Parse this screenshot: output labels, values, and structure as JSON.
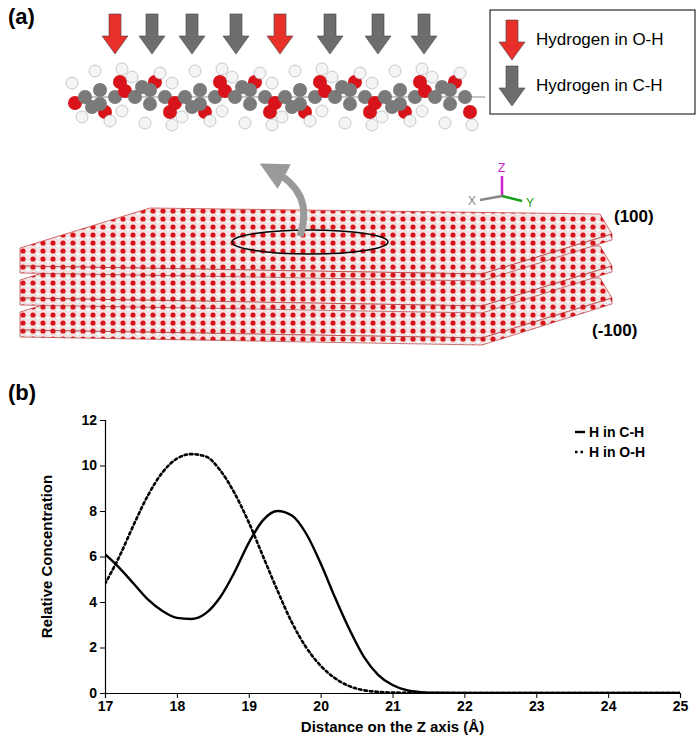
{
  "figure_a": {
    "panel_label": "(a)",
    "legend": [
      {
        "name": "Hydrogen in O-H",
        "color": "#e8302a"
      },
      {
        "name": "Hydrogen in C-H",
        "color": "#6d6d6d"
      }
    ],
    "arrows": [
      "Hydrogen in O-H",
      "Hydrogen in C-H",
      "Hydrogen in C-H",
      "Hydrogen in C-H",
      "Hydrogen in O-H",
      "Hydrogen in C-H",
      "Hydrogen in C-H",
      "Hydrogen in C-H"
    ],
    "surface_labels": [
      "(100)",
      "(-100)"
    ],
    "axis_labels": [
      "Z",
      "X",
      "Y"
    ]
  },
  "chart_data": {
    "type": "line",
    "panel_label": "(b)",
    "x_label": "Distance on the Z axis (Å)",
    "y_label": "Relative Concentration",
    "x": [
      17,
      17.2,
      17.4,
      17.6,
      17.8,
      18,
      18.2,
      18.4,
      18.6,
      18.8,
      19,
      19.2,
      19.4,
      19.6,
      19.8,
      20,
      20.2,
      20.4,
      20.6,
      20.8,
      21,
      21.2,
      21.4,
      21.6,
      22,
      23,
      24,
      25
    ],
    "series": [
      {
        "name": "H in C-H",
        "color": "#000000",
        "line_style": "solid",
        "values": [
          6.1,
          5.5,
          4.8,
          4.1,
          3.6,
          3.3,
          3.25,
          3.5,
          4.2,
          5.3,
          6.6,
          7.6,
          8.0,
          7.8,
          7.0,
          5.7,
          4.2,
          2.8,
          1.6,
          0.8,
          0.35,
          0.12,
          0.04,
          0.01,
          0,
          0,
          0,
          0
        ]
      },
      {
        "name": "H in O-H",
        "color": "#000000",
        "line_style": "dotted",
        "values": [
          4.8,
          6.0,
          7.4,
          8.7,
          9.7,
          10.3,
          10.5,
          10.4,
          9.8,
          8.8,
          7.5,
          6.0,
          4.5,
          3.1,
          2.0,
          1.2,
          0.65,
          0.3,
          0.12,
          0.05,
          0.02,
          0.01,
          0,
          0,
          0,
          0,
          0,
          0
        ]
      }
    ],
    "xlim": [
      17,
      25
    ],
    "xticks": [
      17,
      18,
      19,
      20,
      21,
      22,
      23,
      24,
      25
    ],
    "ylim": [
      0,
      12
    ],
    "yticks": [
      0,
      2,
      4,
      6,
      8,
      10,
      12
    ],
    "grid": false,
    "legend": "top-right"
  }
}
